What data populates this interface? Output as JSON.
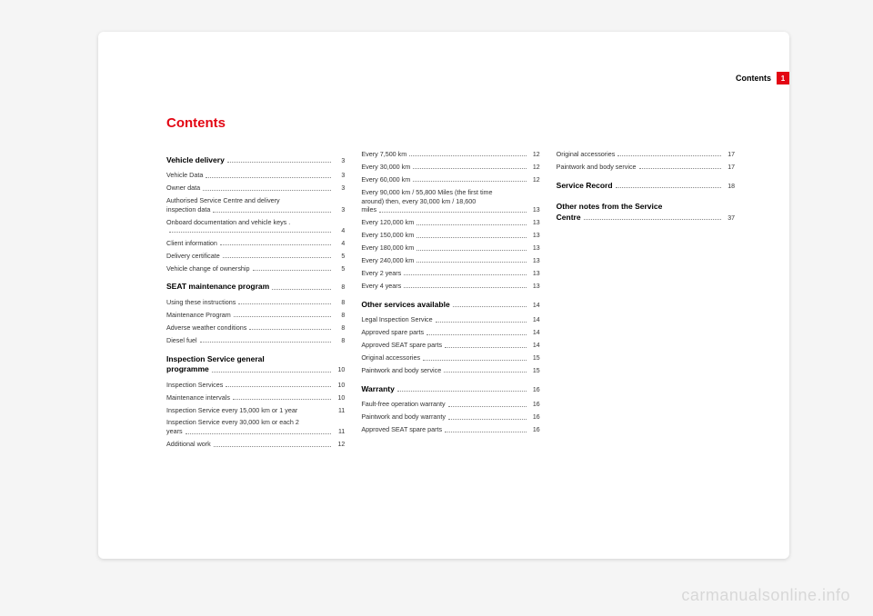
{
  "header": {
    "section_label": "Contents",
    "page_number": "1"
  },
  "title": "Contents",
  "tab_color": "#e30613",
  "title_color": "#e30613",
  "background_color": "#f5f5f5",
  "page_color": "#ffffff",
  "columns": [
    {
      "entries": [
        {
          "label": "Vehicle delivery",
          "page": "3",
          "bold": true,
          "heading": true
        },
        {
          "label": "Vehicle Data",
          "page": "3"
        },
        {
          "label": "Owner data",
          "page": "3"
        },
        {
          "label_lines": [
            "Authorised Service Centre and delivery",
            "inspection data"
          ],
          "page": "3"
        },
        {
          "label_lines": [
            "Onboard documentation and vehicle keys   .",
            ""
          ],
          "page": "4"
        },
        {
          "label": "Client information",
          "page": "4"
        },
        {
          "label": "Delivery certificate",
          "page": "5"
        },
        {
          "label": "Vehicle change of ownership",
          "page": "5"
        },
        {
          "label": "SEAT maintenance program",
          "page": "8",
          "bold": true,
          "heading": true
        },
        {
          "label": "Using these instructions",
          "page": "8"
        },
        {
          "label": "Maintenance Program",
          "page": "8"
        },
        {
          "label": "Adverse weather conditions",
          "page": "8"
        },
        {
          "label": "Diesel fuel",
          "page": "8"
        },
        {
          "label_lines": [
            "Inspection Service general",
            "programme"
          ],
          "page": "10",
          "bold": true,
          "heading": true
        },
        {
          "label": "Inspection Services",
          "page": "10"
        },
        {
          "label": "Maintenance intervals",
          "page": "10"
        },
        {
          "label": "Inspection Service every 15,000 km or 1 year",
          "page": "11",
          "noleader": true
        },
        {
          "label_lines": [
            "Inspection Service every 30,000 km or each 2",
            "years"
          ],
          "page": "11"
        },
        {
          "label": "Additional work",
          "page": "12"
        }
      ]
    },
    {
      "entries": [
        {
          "label": "Every 7,500 km",
          "page": "12"
        },
        {
          "label": "Every 30,000 km",
          "page": "12"
        },
        {
          "label": "Every 60,000 km",
          "page": "12"
        },
        {
          "label_lines": [
            "Every 90,000 km / 55,800 Miles (the first time",
            "around) then, every 30,000 km / 18,600",
            "miles"
          ],
          "page": "13"
        },
        {
          "label": "Every 120,000 km",
          "page": "13"
        },
        {
          "label": "Every 150,000 km",
          "page": "13"
        },
        {
          "label": "Every 180,000 km",
          "page": "13"
        },
        {
          "label": "Every 240,000 km",
          "page": "13"
        },
        {
          "label": "Every 2 years",
          "page": "13"
        },
        {
          "label": "Every 4 years",
          "page": "13"
        },
        {
          "label": "Other services available",
          "page": "14",
          "bold": true,
          "heading": true
        },
        {
          "label": "Legal Inspection Service",
          "page": "14"
        },
        {
          "label": "Approved spare parts",
          "page": "14"
        },
        {
          "label": "Approved SEAT spare parts",
          "page": "14"
        },
        {
          "label": "Original accessories",
          "page": "15"
        },
        {
          "label": "Paintwork and body service",
          "page": "15"
        },
        {
          "label": "Warranty",
          "page": "16",
          "bold": true,
          "heading": true
        },
        {
          "label": "Fault-free operation warranty",
          "page": "16"
        },
        {
          "label": "Paintwork and body warranty",
          "page": "16"
        },
        {
          "label": "Approved SEAT spare parts",
          "page": "16"
        }
      ]
    },
    {
      "entries": [
        {
          "label": "Original accessories",
          "page": "17"
        },
        {
          "label": "Paintwork and body service",
          "page": "17"
        },
        {
          "label": "Service Record",
          "page": "18",
          "bold": true,
          "heading": true
        },
        {
          "label_lines": [
            "Other notes from the Service",
            "Centre"
          ],
          "page": "37",
          "bold": true,
          "heading": true
        }
      ]
    }
  ],
  "watermark": "carmanualsonline.info"
}
